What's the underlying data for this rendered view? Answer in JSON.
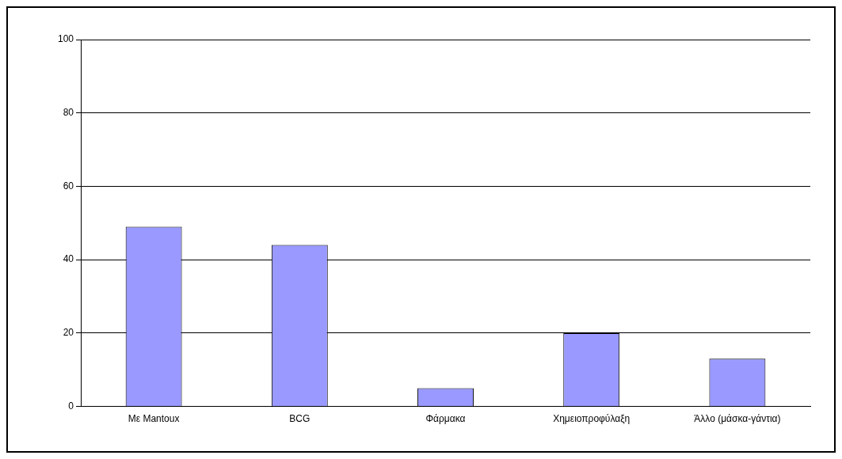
{
  "chart_data": {
    "type": "bar",
    "categories": [
      "Με Mantoux",
      "BCG",
      "Φάρμακα",
      "Χημειοπροφύλαξη",
      "Άλλο (μάσκα-γάντια)"
    ],
    "values": [
      49,
      44,
      5,
      20,
      13
    ],
    "color": "#9999ff",
    "ylim": [
      0,
      100
    ],
    "yticks": [
      0,
      20,
      40,
      60,
      80,
      100
    ],
    "grid": "y",
    "legend": false
  }
}
